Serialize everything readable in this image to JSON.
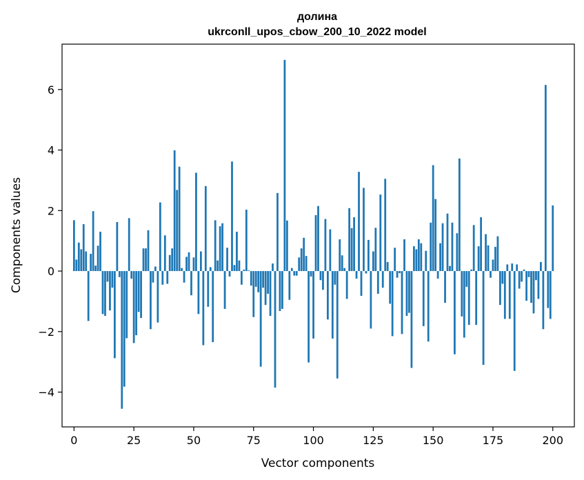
{
  "chart_data": {
    "type": "bar",
    "title_lines": [
      "долина",
      "ukrconll_upos_cbow_200_10_2022 model"
    ],
    "xlabel": "Vector components",
    "ylabel": "Components values",
    "xlim": [
      -5,
      209
    ],
    "ylim": [
      -5.15,
      7.5
    ],
    "xticks": [
      0,
      25,
      50,
      75,
      100,
      125,
      150,
      175,
      200
    ],
    "xtick_labels": [
      "0",
      "25",
      "50",
      "75",
      "100",
      "125",
      "150",
      "175",
      "200"
    ],
    "yticks": [
      -4,
      -2,
      0,
      2,
      4,
      6
    ],
    "ytick_labels": [
      "−4",
      "−2",
      "0",
      "2",
      "4",
      "6"
    ],
    "grid": false,
    "bar_color": "#1f77b4",
    "values": [
      1.68,
      0.38,
      0.94,
      0.72,
      1.55,
      0.65,
      -1.65,
      0.57,
      1.98,
      0.18,
      0.84,
      1.3,
      -1.42,
      -1.48,
      -0.35,
      -1.3,
      -0.55,
      -2.88,
      1.62,
      -0.2,
      -4.55,
      -3.82,
      -2.22,
      1.75,
      -0.25,
      -2.38,
      -2.12,
      -1.35,
      -1.55,
      0.75,
      0.75,
      1.35,
      -1.92,
      -0.38,
      0.15,
      -1.7,
      2.27,
      -0.45,
      1.18,
      -0.42,
      0.53,
      0.75,
      3.99,
      2.68,
      3.45,
      0.1,
      -0.38,
      0.47,
      0.62,
      -0.8,
      0.45,
      3.25,
      -1.42,
      0.65,
      -2.45,
      2.81,
      -1.18,
      0.13,
      -2.35,
      1.68,
      0.35,
      1.48,
      1.58,
      -1.25,
      0.77,
      -0.18,
      3.62,
      0.2,
      1.3,
      0.35,
      -0.45,
      0.05,
      2.03,
      0.02,
      -0.48,
      -1.52,
      -0.52,
      -0.7,
      -3.16,
      -0.55,
      -1.12,
      -0.75,
      -1.48,
      0.25,
      -3.85,
      2.58,
      -1.32,
      -1.25,
      6.98,
      1.67,
      -0.95,
      0.1,
      -0.15,
      -0.15,
      0.45,
      0.75,
      1.1,
      0.5,
      -3.02,
      -0.18,
      -2.23,
      1.85,
      2.15,
      -0.3,
      -0.62,
      1.72,
      -1.6,
      1.38,
      -2.23,
      -0.45,
      -3.55,
      1.05,
      0.52,
      0.1,
      -0.92,
      2.08,
      1.42,
      1.78,
      -0.25,
      3.28,
      -0.82,
      2.75,
      -0.08,
      1.03,
      -1.9,
      0.65,
      1.43,
      -0.75,
      2.53,
      -0.55,
      3.05,
      0.3,
      -1.08,
      -2.15,
      0.77,
      -0.22,
      -0.07,
      -2.08,
      1.05,
      -1.48,
      -1.38,
      -3.2,
      0.82,
      0.72,
      1.05,
      0.92,
      -1.82,
      0.67,
      -2.33,
      1.6,
      3.5,
      2.38,
      -0.25,
      0.92,
      1.58,
      -1.05,
      1.9,
      0.17,
      1.6,
      -2.75,
      1.25,
      3.72,
      -1.5,
      -2.2,
      -0.52,
      -1.78,
      0.05,
      1.52,
      -1.78,
      0.82,
      1.78,
      -3.1,
      1.22,
      0.85,
      -0.22,
      0.38,
      0.8,
      1.15,
      -1.12,
      -0.42,
      -1.58,
      0.22,
      -1.58,
      0.25,
      -3.3,
      0.22,
      -0.58,
      -0.35,
      0.05,
      -0.98,
      -0.2,
      -1.05,
      -1.4,
      -0.3,
      -0.92,
      0.3,
      -1.92,
      6.15,
      -1.22,
      -1.58,
      2.17
    ]
  }
}
